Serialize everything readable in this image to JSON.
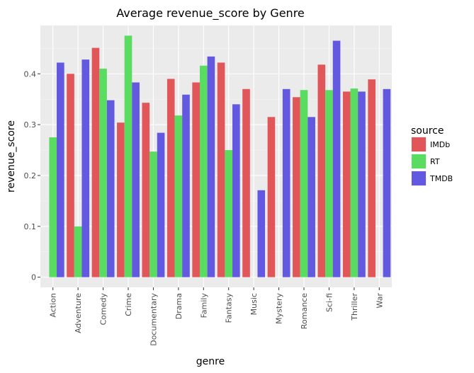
{
  "chart_data": {
    "type": "bar",
    "title": "Average revenue_score by Genre",
    "xlabel": "genre",
    "ylabel": "revenue_score",
    "ylim": [
      -0.02,
      0.495
    ],
    "yticks": [
      0,
      0.1,
      0.2,
      0.3,
      0.4
    ],
    "ytick_labels": [
      "0",
      "0.1",
      "0.2",
      "0.3",
      "0.4"
    ],
    "grid": true,
    "legend": {
      "title": "source",
      "placement": "right"
    },
    "categories": [
      "Action",
      "Adventure",
      "Comedy",
      "Crime",
      "Documentary",
      "Drama",
      "Family",
      "Fantasy",
      "Music",
      "Mystery",
      "Romance",
      "Sci-fi",
      "Thriller",
      "War"
    ],
    "series": [
      {
        "name": "IMDb",
        "color": "#e15759",
        "values": [
          null,
          0.4,
          0.451,
          0.304,
          0.343,
          0.39,
          0.383,
          0.422,
          0.37,
          0.315,
          0.354,
          0.418,
          0.365,
          0.389
        ]
      },
      {
        "name": "RT",
        "color": "#59dc5f",
        "values": [
          0.275,
          0.1,
          0.41,
          0.475,
          0.247,
          0.318,
          0.416,
          0.25,
          null,
          null,
          0.368,
          0.368,
          0.371,
          null
        ]
      },
      {
        "name": "TMDB",
        "color": "#6259e0",
        "values": [
          0.422,
          0.428,
          0.348,
          0.383,
          0.284,
          0.359,
          0.434,
          0.34,
          0.171,
          0.37,
          0.315,
          0.465,
          0.365,
          0.37
        ]
      }
    ]
  }
}
